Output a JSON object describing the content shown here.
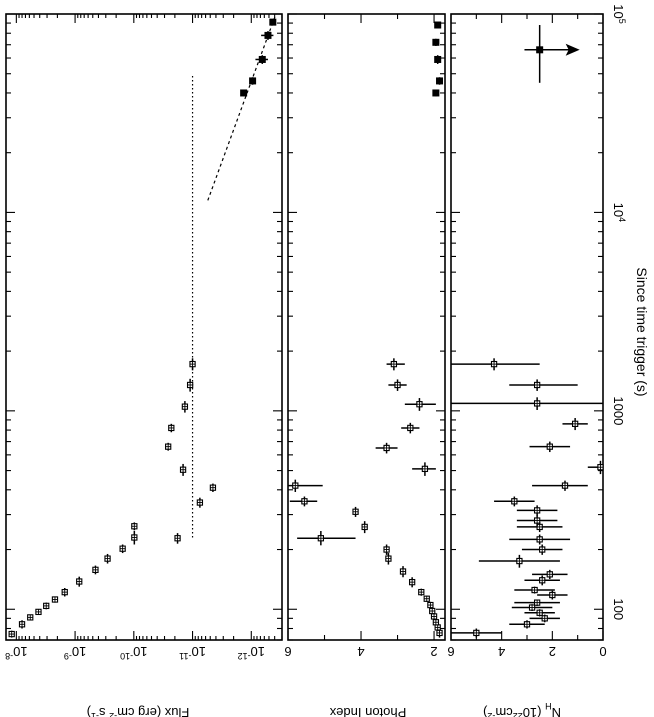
{
  "figure": {
    "x_axis_label": "Since time trigger (s)",
    "x_scale": "log",
    "x_range": [
      70,
      100000
    ],
    "x_tick_labels": [
      {
        "value": 100,
        "label": "100"
      },
      {
        "value": 1000,
        "label": "1000"
      },
      {
        "value": 10000,
        "label": "10",
        "exp": "4"
      },
      {
        "value": 100000,
        "label": "10",
        "exp": "5"
      }
    ],
    "orientation": "rotated 90 degrees clockwise (x axis runs top to bottom)"
  },
  "chart_data": [
    {
      "type": "scatter",
      "panel": "flux",
      "ylabel_parts": [
        "Flux (erg cm",
        "-2",
        " s",
        "-1",
        ")"
      ],
      "y_scale": "log",
      "ylim": [
        3e-13,
        1.5e-08
      ],
      "y_tick_labels": [
        {
          "value": 1e-08,
          "label": "10",
          "exp": "-8"
        },
        {
          "value": 1e-09,
          "label": "10",
          "exp": "-9"
        },
        {
          "value": 1e-10,
          "label": "10",
          "exp": "-10"
        },
        {
          "value": 1e-11,
          "label": "10",
          "exp": "-11"
        },
        {
          "value": 1e-12,
          "label": "10",
          "exp": "-12"
        }
      ],
      "series": [
        {
          "marker": "open-square",
          "points": [
            {
              "x": 75,
              "y": 1.2e-08,
              "xerr": [
                72,
                78
              ]
            },
            {
              "x": 84,
              "y": 8e-09,
              "xerr": [
                80,
                88
              ]
            },
            {
              "x": 91,
              "y": 5.8e-09,
              "xerr": [
                88,
                94
              ]
            },
            {
              "x": 97,
              "y": 4.2e-09,
              "xerr": [
                94,
                100
              ]
            },
            {
              "x": 104,
              "y": 3.1e-09,
              "xerr": [
                100,
                108
              ]
            },
            {
              "x": 112,
              "y": 2.2e-09,
              "xerr": [
                108,
                116
              ]
            },
            {
              "x": 122,
              "y": 1.5e-09,
              "xerr": [
                116,
                128
              ]
            },
            {
              "x": 138,
              "y": 8.5e-10,
              "xerr": [
                130,
                146
              ]
            },
            {
              "x": 158,
              "y": 4.5e-10,
              "xerr": [
                150,
                166
              ]
            },
            {
              "x": 180,
              "y": 2.8e-10,
              "xerr": [
                170,
                190
              ]
            },
            {
              "x": 202,
              "y": 1.55e-10,
              "xerr": [
                192,
                212
              ]
            },
            {
              "x": 230,
              "y": 9.8e-11,
              "xerr": [
                212,
                248
              ]
            },
            {
              "x": 262,
              "y": 9.8e-11,
              "xerr": [
                250,
                274
              ]
            },
            {
              "x": 228,
              "y": 1.8e-11,
              "xerr": [
                214,
                242
              ]
            },
            {
              "x": 345,
              "y": 7.5e-12,
              "xerr": [
                325,
                365
              ]
            },
            {
              "x": 410,
              "y": 4.5e-12,
              "xerr": [
                390,
                430
              ]
            },
            {
              "x": 505,
              "y": 1.45e-11,
              "xerr": [
                470,
                540
              ]
            },
            {
              "x": 660,
              "y": 2.6e-11,
              "xerr": [
                630,
                690
              ]
            },
            {
              "x": 820,
              "y": 2.3e-11,
              "xerr": [
                780,
                860
              ]
            },
            {
              "x": 1050,
              "y": 1.35e-11,
              "xerr": [
                980,
                1120
              ]
            },
            {
              "x": 1350,
              "y": 1.1e-11,
              "xerr": [
                1250,
                1450
              ]
            },
            {
              "x": 1720,
              "y": 1e-11,
              "xerr": [
                1600,
                1840
              ]
            }
          ]
        },
        {
          "marker": "filled-square",
          "points": [
            {
              "x": 40000,
              "y": 1.35e-12,
              "xerr": [
                38500,
                41500
              ]
            },
            {
              "x": 46000,
              "y": 9.5e-13,
              "xerr": [
                44000,
                48000
              ]
            },
            {
              "x": 59000,
              "y": 6.5e-13,
              "xerr": [
                56000,
                62000
              ],
              "yerr": [
                5.2e-13,
                8.5e-13
              ]
            },
            {
              "x": 78000,
              "y": 5.2e-13,
              "xerr": [
                74000,
                82000
              ],
              "yerr": [
                4.2e-13,
                6.8e-13
              ]
            },
            {
              "x": 91000,
              "y": 4.3e-13,
              "xerr": [
                88000,
                94000
              ]
            }
          ]
        }
      ],
      "lines": [
        {
          "style": "dotted",
          "x": [
            230,
            50000
          ],
          "y": [
            1e-11,
            1e-11
          ]
        },
        {
          "style": "dashed",
          "x": [
            11500,
            100000
          ],
          "y": [
            5.5e-12,
            3.8e-13
          ]
        }
      ]
    },
    {
      "type": "scatter",
      "panel": "photon_index",
      "ylabel": "Photon Index",
      "ylim": [
        1.7,
        6
      ],
      "y_tick_labels": [
        {
          "value": 6,
          "label": "6"
        },
        {
          "value": 4,
          "label": "4"
        },
        {
          "value": 2,
          "label": "2"
        }
      ],
      "series": [
        {
          "marker": "open-square",
          "points": [
            {
              "x": 76,
              "y": 1.85,
              "xerr": [
                72,
                80
              ]
            },
            {
              "x": 81,
              "y": 1.9,
              "xerr": [
                78,
                84
              ]
            },
            {
              "x": 86,
              "y": 1.95,
              "xerr": [
                83,
                89
              ]
            },
            {
              "x": 92,
              "y": 2.0,
              "xerr": [
                89,
                95
              ]
            },
            {
              "x": 98,
              "y": 2.05,
              "xerr": [
                95,
                101
              ]
            },
            {
              "x": 105,
              "y": 2.1,
              "xerr": [
                101,
                109
              ]
            },
            {
              "x": 113,
              "y": 2.2,
              "xerr": [
                109,
                117
              ]
            },
            {
              "x": 122,
              "y": 2.35,
              "xerr": [
                117,
                127
              ]
            },
            {
              "x": 137,
              "y": 2.6,
              "xerr": [
                129,
                145
              ]
            },
            {
              "x": 155,
              "y": 2.85,
              "xerr": [
                145,
                165
              ]
            },
            {
              "x": 180,
              "y": 3.25,
              "xerr": [
                168,
                192
              ]
            },
            {
              "x": 200,
              "y": 3.3,
              "xerr": [
                188,
                212
              ]
            },
            {
              "x": 228,
              "y": 5.1,
              "xerr": [
                210,
                248
              ],
              "yerr": [
                4.15,
                5.75
              ]
            },
            {
              "x": 260,
              "y": 3.9,
              "xerr": [
                242,
                278
              ]
            },
            {
              "x": 310,
              "y": 4.15,
              "xerr": [
                292,
                328
              ]
            },
            {
              "x": 350,
              "y": 5.55,
              "xerr": [
                330,
                370
              ],
              "yerr": [
                5.2,
                5.95
              ]
            },
            {
              "x": 420,
              "y": 5.8,
              "xerr": [
                390,
                450
              ],
              "yerr": [
                5.05,
                6.0
              ]
            },
            {
              "x": 510,
              "y": 2.25,
              "xerr": [
                470,
                550
              ],
              "yerr": [
                1.95,
                2.6
              ]
            },
            {
              "x": 650,
              "y": 3.3,
              "xerr": [
                610,
                690
              ],
              "yerr": [
                3.0,
                3.6
              ]
            },
            {
              "x": 820,
              "y": 2.65,
              "xerr": [
                770,
                870
              ],
              "yerr": [
                2.4,
                2.9
              ]
            },
            {
              "x": 1080,
              "y": 2.4,
              "xerr": [
                1000,
                1160
              ],
              "yerr": [
                1.95,
                2.8
              ]
            },
            {
              "x": 1350,
              "y": 3.0,
              "xerr": [
                1260,
                1440
              ],
              "yerr": [
                2.75,
                3.25
              ]
            },
            {
              "x": 1720,
              "y": 3.1,
              "xerr": [
                1600,
                1840
              ],
              "yerr": [
                2.8,
                3.3
              ]
            }
          ]
        },
        {
          "marker": "filled-square",
          "points": [
            {
              "x": 40000,
              "y": 1.95,
              "xerr": [
                38500,
                41500
              ]
            },
            {
              "x": 46000,
              "y": 1.85,
              "xerr": [
                44000,
                48000
              ]
            },
            {
              "x": 59000,
              "y": 1.9,
              "xerr": [
                56000,
                62000
              ]
            },
            {
              "x": 72000,
              "y": 1.95,
              "xerr": [
                69000,
                75000
              ]
            },
            {
              "x": 88000,
              "y": 1.9,
              "xerr": [
                85000,
                91000
              ]
            }
          ]
        }
      ]
    },
    {
      "type": "scatter",
      "panel": "nh",
      "ylabel_parts": [
        "N",
        "H",
        " (10",
        "22",
        "cm",
        "-2",
        ")"
      ],
      "ylim": [
        0,
        6
      ],
      "y_tick_labels": [
        {
          "value": 6,
          "label": "6"
        },
        {
          "value": 4,
          "label": "4"
        },
        {
          "value": 2,
          "label": "2"
        },
        {
          "value": 0,
          "label": "0"
        }
      ],
      "series": [
        {
          "marker": "open-square",
          "points": [
            {
              "x": 76,
              "y": 5.0,
              "xerr": [
                72,
                80
              ],
              "yerr": [
                4.0,
                6.0
              ]
            },
            {
              "x": 84,
              "y": 3.0,
              "xerr": [
                80,
                88
              ],
              "yerr": [
                2.3,
                3.7
              ]
            },
            {
              "x": 90,
              "y": 2.3,
              "xerr": [
                86,
                94
              ],
              "yerr": [
                1.7,
                2.9
              ]
            },
            {
              "x": 96,
              "y": 2.5,
              "xerr": [
                92,
                100
              ],
              "yerr": [
                1.9,
                3.1
              ]
            },
            {
              "x": 102,
              "y": 2.8,
              "xerr": [
                98,
                106
              ],
              "yerr": [
                2.0,
                3.6
              ]
            },
            {
              "x": 108,
              "y": 2.6,
              "xerr": [
                104,
                112
              ],
              "yerr": [
                1.7,
                3.5
              ]
            },
            {
              "x": 118,
              "y": 2.0,
              "xerr": [
                112,
                124
              ],
              "yerr": [
                1.4,
                2.6
              ]
            },
            {
              "x": 125,
              "y": 2.7,
              "xerr": [
                120,
                130
              ],
              "yerr": [
                1.9,
                3.5
              ]
            },
            {
              "x": 140,
              "y": 2.4,
              "xerr": [
                132,
                148
              ],
              "yerr": [
                1.7,
                3.1
              ]
            },
            {
              "x": 150,
              "y": 2.1,
              "xerr": [
                142,
                158
              ],
              "yerr": [
                1.4,
                2.8
              ]
            },
            {
              "x": 175,
              "y": 3.3,
              "xerr": [
                162,
                188
              ],
              "yerr": [
                1.7,
                4.9
              ]
            },
            {
              "x": 200,
              "y": 2.4,
              "xerr": [
                188,
                212
              ],
              "yerr": [
                1.6,
                3.2
              ]
            },
            {
              "x": 225,
              "y": 2.5,
              "xerr": [
                212,
                238
              ],
              "yerr": [
                1.3,
                3.7
              ]
            },
            {
              "x": 260,
              "y": 2.5,
              "xerr": [
                245,
                275
              ],
              "yerr": [
                1.6,
                3.4
              ]
            },
            {
              "x": 280,
              "y": 2.6,
              "xerr": [
                262,
                298
              ],
              "yerr": [
                1.8,
                3.4
              ]
            },
            {
              "x": 315,
              "y": 2.6,
              "xerr": [
                296,
                334
              ],
              "yerr": [
                1.8,
                3.4
              ]
            },
            {
              "x": 350,
              "y": 3.5,
              "xerr": [
                330,
                370
              ],
              "yerr": [
                2.7,
                4.3
              ]
            },
            {
              "x": 420,
              "y": 1.5,
              "xerr": [
                395,
                445
              ],
              "yerr": [
                0.6,
                2.8
              ]
            },
            {
              "x": 520,
              "y": 0.1,
              "xerr": [
                480,
                560
              ],
              "yerr": [
                0.0,
                0.6
              ]
            },
            {
              "x": 660,
              "y": 2.1,
              "xerr": [
                620,
                700
              ],
              "yerr": [
                1.3,
                2.9
              ]
            },
            {
              "x": 860,
              "y": 1.1,
              "xerr": [
                800,
                920
              ],
              "yerr": [
                0.6,
                1.6
              ]
            },
            {
              "x": 1090,
              "y": 2.6,
              "xerr": [
                1010,
                1170
              ],
              "yerr": [
                0.0,
                6.0
              ]
            },
            {
              "x": 1350,
              "y": 2.6,
              "xerr": [
                1260,
                1440
              ],
              "yerr": [
                1.0,
                3.7
              ]
            },
            {
              "x": 1720,
              "y": 4.3,
              "xerr": [
                1600,
                1840
              ],
              "yerr": [
                2.5,
                6.0
              ]
            }
          ]
        },
        {
          "marker": "filled-square",
          "upper_limit_arrow": true,
          "points": [
            {
              "x": 66000,
              "y": 2.5,
              "xerr": [
                45000,
                88000
              ],
              "yerr": [
                1.9,
                3.1
              ]
            }
          ]
        }
      ]
    }
  ]
}
